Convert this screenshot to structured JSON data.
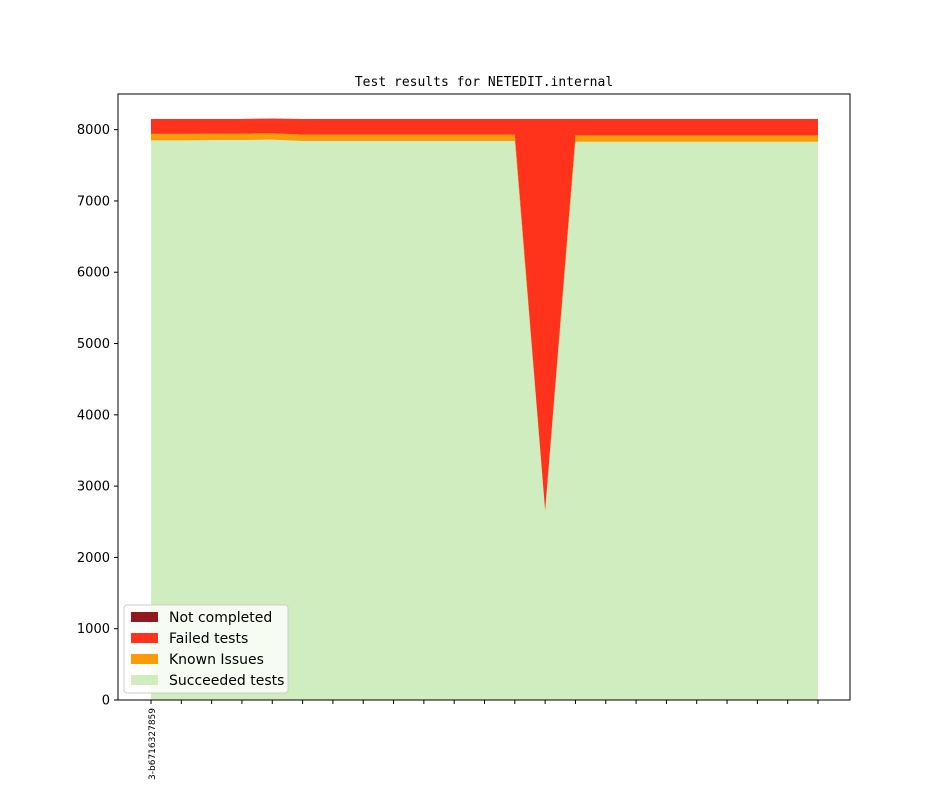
{
  "chart_data": {
    "type": "area",
    "title": "Test results for NETEDIT.internal",
    "xlabel": "",
    "ylabel": "",
    "ylim": [
      0,
      8500
    ],
    "yticks": [
      0,
      1000,
      2000,
      3000,
      4000,
      5000,
      6000,
      7000,
      8000
    ],
    "x_tick_count": 23,
    "x_tick_labels": [
      "3-b6716327859"
    ],
    "stacked": true,
    "legend_position": "lower-left",
    "grid": false,
    "series": [
      {
        "name": "Succeeded tests",
        "color": "#cfedbf",
        "values": [
          7850,
          7850,
          7855,
          7855,
          7860,
          7840,
          7840,
          7840,
          7840,
          7840,
          7840,
          7840,
          7840,
          2650,
          7830,
          7830,
          7830,
          7830,
          7830,
          7830,
          7830,
          7830,
          7830
        ]
      },
      {
        "name": "Known Issues",
        "color": "#fb9b06",
        "values": [
          90,
          90,
          90,
          90,
          90,
          90,
          90,
          90,
          90,
          90,
          90,
          90,
          90,
          5,
          90,
          90,
          90,
          90,
          90,
          90,
          90,
          90,
          90
        ]
      },
      {
        "name": "Failed tests",
        "color": "#ff331c",
        "values": [
          210,
          210,
          205,
          205,
          200,
          220,
          220,
          220,
          220,
          220,
          220,
          220,
          220,
          5495,
          230,
          230,
          230,
          230,
          230,
          230,
          230,
          230,
          230
        ]
      },
      {
        "name": "Not completed",
        "color": "#921a1c",
        "values": [
          0,
          0,
          0,
          0,
          5,
          0,
          0,
          0,
          0,
          0,
          0,
          0,
          0,
          0,
          0,
          0,
          0,
          0,
          0,
          0,
          0,
          0,
          0
        ]
      }
    ]
  }
}
